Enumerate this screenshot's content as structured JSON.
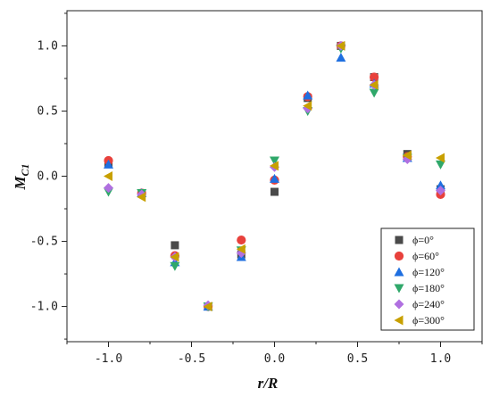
{
  "chart_data": {
    "type": "scatter",
    "title": "",
    "xlabel": "r/R",
    "ylabel_main": "M",
    "ylabel_sub": "C1",
    "xlim": [
      -1.25,
      1.25
    ],
    "ylim": [
      -1.27,
      1.27
    ],
    "xticks": [
      -1.0,
      -0.5,
      0.0,
      0.5,
      1.0
    ],
    "xtick_labels": [
      "-1.0",
      "-0.5",
      "0.0",
      "0.5",
      "1.0"
    ],
    "yticks": [
      -1.0,
      -0.5,
      0.0,
      0.5,
      1.0
    ],
    "ytick_labels": [
      "-1.0",
      "-0.5",
      "0.0",
      "0.5",
      "1.0"
    ],
    "legend_position": "bottom-right",
    "grid": false,
    "x": [
      -1.0,
      -0.8,
      -0.6,
      -0.4,
      -0.2,
      0.0,
      0.2,
      0.4,
      0.6,
      0.8,
      1.0
    ],
    "series": [
      {
        "name": "ϕ=0°",
        "marker": "square",
        "color": "#4a4a4a",
        "values": [
          0.1,
          -0.13,
          -0.53,
          -1.0,
          -0.6,
          -0.12,
          0.6,
          1.0,
          0.76,
          0.17,
          -0.1
        ]
      },
      {
        "name": "ϕ=60°",
        "marker": "circle",
        "color": "#e8413c",
        "values": [
          0.12,
          -0.13,
          -0.61,
          -1.0,
          -0.49,
          -0.03,
          0.61,
          1.0,
          0.76,
          0.15,
          -0.14
        ]
      },
      {
        "name": "ϕ=120°",
        "marker": "triangle-up",
        "color": "#1f6fe0",
        "values": [
          0.09,
          -0.13,
          -0.66,
          -1.0,
          -0.62,
          -0.02,
          0.62,
          0.91,
          0.71,
          0.14,
          -0.07
        ]
      },
      {
        "name": "ϕ=180°",
        "marker": "triangle-down",
        "color": "#2fa86a",
        "values": [
          -0.12,
          -0.13,
          -0.69,
          -1.0,
          -0.57,
          0.12,
          0.5,
          0.98,
          0.64,
          0.14,
          0.09
        ]
      },
      {
        "name": "ϕ=240°",
        "marker": "diamond",
        "color": "#b070e0",
        "values": [
          -0.09,
          -0.14,
          -0.62,
          -0.99,
          -0.59,
          0.07,
          0.52,
          1.0,
          0.7,
          0.13,
          -0.11
        ]
      },
      {
        "name": "ϕ=300°",
        "marker": "triangle-left",
        "color": "#c8a000",
        "values": [
          0.0,
          -0.16,
          -0.62,
          -1.0,
          -0.56,
          0.08,
          0.54,
          1.0,
          0.7,
          0.16,
          0.14
        ]
      }
    ]
  }
}
